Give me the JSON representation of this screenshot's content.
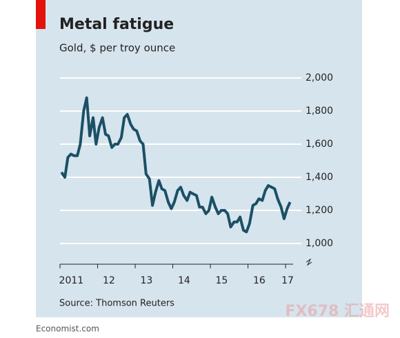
{
  "chart_data": {
    "type": "line",
    "title": "Metal fatigue",
    "subtitle": "Gold, $ per troy ounce",
    "source": "Source: Thomson Reuters",
    "footer": "Economist.com",
    "watermark": "FX678 汇通网",
    "x": [
      2011.04,
      2011.13,
      2011.21,
      2011.29,
      2011.38,
      2011.46,
      2011.54,
      2011.63,
      2011.71,
      2011.79,
      2011.88,
      2011.96,
      2012.04,
      2012.13,
      2012.21,
      2012.29,
      2012.38,
      2012.46,
      2012.54,
      2012.63,
      2012.71,
      2012.79,
      2012.88,
      2012.96,
      2013.04,
      2013.13,
      2013.21,
      2013.29,
      2013.38,
      2013.46,
      2013.54,
      2013.63,
      2013.71,
      2013.79,
      2013.88,
      2013.96,
      2014.04,
      2014.13,
      2014.21,
      2014.29,
      2014.38,
      2014.46,
      2014.54,
      2014.63,
      2014.71,
      2014.79,
      2014.88,
      2014.96,
      2015.04,
      2015.13,
      2015.21,
      2015.29,
      2015.38,
      2015.46,
      2015.54,
      2015.63,
      2015.71,
      2015.79,
      2015.88,
      2015.96,
      2016.04,
      2016.13,
      2016.21,
      2016.29,
      2016.38,
      2016.46,
      2016.54,
      2016.63,
      2016.71,
      2016.79,
      2016.88,
      2016.96,
      2017.04,
      2017.12
    ],
    "series": [
      {
        "name": "Gold",
        "color": "#1b5066",
        "values": [
          1430,
          1400,
          1520,
          1540,
          1530,
          1530,
          1600,
          1800,
          1880,
          1650,
          1760,
          1600,
          1700,
          1760,
          1660,
          1650,
          1580,
          1600,
          1600,
          1640,
          1760,
          1780,
          1720,
          1690,
          1680,
          1620,
          1600,
          1420,
          1390,
          1230,
          1310,
          1380,
          1330,
          1320,
          1250,
          1210,
          1250,
          1320,
          1340,
          1290,
          1260,
          1310,
          1300,
          1290,
          1220,
          1220,
          1180,
          1200,
          1280,
          1220,
          1180,
          1200,
          1200,
          1180,
          1100,
          1130,
          1130,
          1160,
          1080,
          1070,
          1120,
          1230,
          1240,
          1270,
          1260,
          1320,
          1350,
          1340,
          1330,
          1270,
          1220,
          1150,
          1210,
          1250
        ]
      }
    ],
    "xlim": [
      2011,
      2017.2
    ],
    "xticks": [
      {
        "value": 2011,
        "label": "2011"
      },
      {
        "value": 2012,
        "label": "12"
      },
      {
        "value": 2013,
        "label": "13"
      },
      {
        "value": 2014,
        "label": "14"
      },
      {
        "value": 2015,
        "label": "15"
      },
      {
        "value": 2016,
        "label": "16"
      },
      {
        "value": 2017,
        "label": "17"
      }
    ],
    "ylim": [
      1000,
      2000
    ],
    "yticks": [
      {
        "value": 1000,
        "label": "1,000"
      },
      {
        "value": 1200,
        "label": "1,200"
      },
      {
        "value": 1400,
        "label": "1,400"
      },
      {
        "value": 1600,
        "label": "1,600"
      },
      {
        "value": 1800,
        "label": "1,800"
      },
      {
        "value": 2000,
        "label": "2,000"
      }
    ],
    "grid": true
  }
}
